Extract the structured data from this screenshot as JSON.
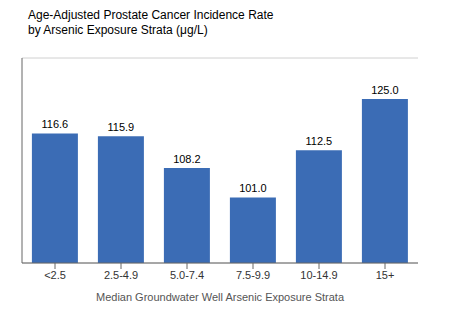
{
  "chart_data": {
    "type": "bar",
    "title": "Age-Adjusted Prostate Cancer Incidence Rate",
    "subtitle": "by Arsenic Exposure Strata (μg/L)",
    "x_label": "Median Groundwater Well Arsenic Exposure Strata",
    "categories": [
      "<2.5",
      "2.5-4.9",
      "5.0-7.4",
      "7.5-9.9",
      "10-14.9",
      "15+"
    ],
    "values": [
      116.6,
      115.9,
      108.2,
      101.0,
      112.5,
      125.0
    ],
    "value_labels": [
      "116.6",
      "115.9",
      "108.2",
      "101.0",
      "112.5",
      "125.0"
    ],
    "data_labels": true,
    "color": "#3B6CB5",
    "ylim": [
      85,
      135
    ],
    "yticks": [
      90,
      100,
      110,
      120,
      130
    ],
    "grid": true,
    "tick_labels": "x"
  }
}
